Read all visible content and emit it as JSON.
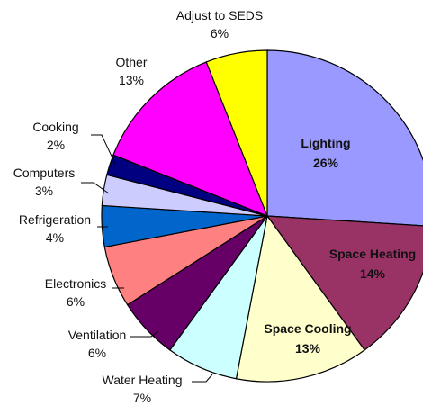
{
  "chart_data": {
    "type": "pie",
    "title": "",
    "slices": [
      {
        "label": "Lighting",
        "value": 26,
        "pct_label": "26%",
        "color": "#9999FF",
        "label_inside": true
      },
      {
        "label": "Space Heating",
        "value": 14,
        "pct_label": "14%",
        "color": "#993366",
        "label_inside": true
      },
      {
        "label": "Space Cooling",
        "value": 13,
        "pct_label": "13%",
        "color": "#FFFFCC",
        "label_inside": true
      },
      {
        "label": "Water Heating",
        "value": 7,
        "pct_label": "7%",
        "color": "#CCFFFF",
        "label_inside": false
      },
      {
        "label": "Ventilation",
        "value": 6,
        "pct_label": "6%",
        "color": "#660066",
        "label_inside": false
      },
      {
        "label": "Electronics",
        "value": 6,
        "pct_label": "6%",
        "color": "#FF8080",
        "label_inside": false
      },
      {
        "label": "Refrigeration",
        "value": 4,
        "pct_label": "4%",
        "color": "#0066CC",
        "label_inside": false
      },
      {
        "label": "Computers",
        "value": 3,
        "pct_label": "3%",
        "color": "#CCCCFF",
        "label_inside": false
      },
      {
        "label": "Cooking",
        "value": 2,
        "pct_label": "2%",
        "color": "#000080",
        "label_inside": false
      },
      {
        "label": "Other",
        "value": 13,
        "pct_label": "13%",
        "color": "#FF00FF",
        "label_inside": false
      },
      {
        "label": "Adjust to SEDS",
        "value": 6,
        "pct_label": "6%",
        "color": "#FFFF00",
        "label_inside": false
      }
    ],
    "start": "12 o'clock",
    "direction": "clockwise",
    "legend": "none"
  }
}
